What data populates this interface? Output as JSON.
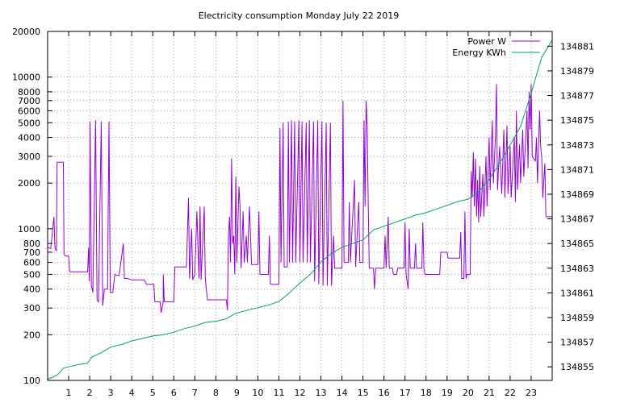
{
  "chart_data": {
    "type": "line",
    "title": "Electricity consumption Monday July 22 2019",
    "xlabel": "",
    "ylabel": "",
    "x_ticks": [
      "1",
      "2",
      "3",
      "4",
      "5",
      "6",
      "7",
      "8",
      "9",
      "10",
      "11",
      "12",
      "13",
      "14",
      "15",
      "16",
      "17",
      "18",
      "19",
      "20",
      "21",
      "22",
      "23"
    ],
    "xlim": [
      0,
      24
    ],
    "y_left_scale": "log",
    "ylim_left": [
      100,
      20000
    ],
    "y_left_ticks": [
      {
        "value": 100,
        "label": "100"
      },
      {
        "value": 200,
        "label": "200"
      },
      {
        "value": 300,
        "label": "300"
      },
      {
        "value": 400,
        "label": "400"
      },
      {
        "value": 500,
        "label": "500"
      },
      {
        "value": 600,
        "label": "600"
      },
      {
        "value": 700,
        "label": "700"
      },
      {
        "value": 800,
        "label": "800"
      },
      {
        "value": 1000,
        "label": "1000"
      },
      {
        "value": 2000,
        "label": "2000"
      },
      {
        "value": 3000,
        "label": "3000"
      },
      {
        "value": 4000,
        "label": "4000"
      },
      {
        "value": 5000,
        "label": "5000"
      },
      {
        "value": 6000,
        "label": "6000"
      },
      {
        "value": 7000,
        "label": "7000"
      },
      {
        "value": 8000,
        "label": "8000"
      },
      {
        "value": 10000,
        "label": "10000"
      },
      {
        "value": 20000,
        "label": "20000"
      }
    ],
    "ylim_right": [
      134853.9,
      134882.2
    ],
    "y_right_ticks": [
      {
        "value": 134855,
        "label": "134855"
      },
      {
        "value": 134857,
        "label": "134857"
      },
      {
        "value": 134859,
        "label": "134859"
      },
      {
        "value": 134861,
        "label": "134861"
      },
      {
        "value": 134863,
        "label": "134863"
      },
      {
        "value": 134865,
        "label": "134865"
      },
      {
        "value": 134867,
        "label": "134867"
      },
      {
        "value": 134869,
        "label": "134869"
      },
      {
        "value": 134871,
        "label": "134871"
      },
      {
        "value": 134873,
        "label": "134873"
      },
      {
        "value": 134875,
        "label": "134875"
      },
      {
        "value": 134877,
        "label": "134877"
      },
      {
        "value": 134879,
        "label": "134879"
      },
      {
        "value": 134881,
        "label": "134881"
      }
    ],
    "grid": true,
    "legend_position": "top-right",
    "series": [
      {
        "name": "Power W",
        "axis": "left",
        "color": "#9400d3",
        "points": [
          [
            0.0,
            750
          ],
          [
            0.15,
            740
          ],
          [
            0.3,
            1200
          ],
          [
            0.35,
            740
          ],
          [
            0.42,
            720
          ],
          [
            0.45,
            2750
          ],
          [
            0.75,
            2750
          ],
          [
            0.78,
            680
          ],
          [
            0.85,
            660
          ],
          [
            1.0,
            660
          ],
          [
            1.05,
            520
          ],
          [
            1.9,
            520
          ],
          [
            1.95,
            750
          ],
          [
            1.98,
            450
          ],
          [
            2.02,
            5100
          ],
          [
            2.08,
            420
          ],
          [
            2.15,
            380
          ],
          [
            2.28,
            5200
          ],
          [
            2.35,
            340
          ],
          [
            2.42,
            330
          ],
          [
            2.55,
            5100
          ],
          [
            2.62,
            310
          ],
          [
            2.7,
            400
          ],
          [
            2.85,
            400
          ],
          [
            2.92,
            5100
          ],
          [
            2.98,
            380
          ],
          [
            3.1,
            380
          ],
          [
            3.2,
            500
          ],
          [
            3.4,
            490
          ],
          [
            3.6,
            800
          ],
          [
            3.65,
            470
          ],
          [
            3.8,
            470
          ],
          [
            4.0,
            460
          ],
          [
            4.6,
            460
          ],
          [
            4.7,
            430
          ],
          [
            5.05,
            430
          ],
          [
            5.1,
            330
          ],
          [
            5.35,
            330
          ],
          [
            5.4,
            280
          ],
          [
            5.5,
            330
          ],
          [
            5.5,
            500
          ],
          [
            5.55,
            330
          ],
          [
            6.0,
            330
          ],
          [
            6.05,
            560
          ],
          [
            6.6,
            560
          ],
          [
            6.7,
            1600
          ],
          [
            6.75,
            470
          ],
          [
            6.85,
            1000
          ],
          [
            6.9,
            460
          ],
          [
            7.0,
            500
          ],
          [
            7.1,
            1300
          ],
          [
            7.2,
            470
          ],
          [
            7.25,
            1400
          ],
          [
            7.3,
            460
          ],
          [
            7.45,
            1400
          ],
          [
            7.5,
            470
          ],
          [
            7.6,
            340
          ],
          [
            8.5,
            340
          ],
          [
            8.55,
            290
          ],
          [
            8.6,
            900
          ],
          [
            8.65,
            1200
          ],
          [
            8.7,
            600
          ],
          [
            8.75,
            2900
          ],
          [
            8.8,
            800
          ],
          [
            8.85,
            900
          ],
          [
            8.9,
            500
          ],
          [
            8.95,
            2200
          ],
          [
            9.0,
            600
          ],
          [
            9.1,
            1900
          ],
          [
            9.15,
            1400
          ],
          [
            9.2,
            550
          ],
          [
            9.3,
            1300
          ],
          [
            9.35,
            600
          ],
          [
            9.45,
            900
          ],
          [
            9.5,
            600
          ],
          [
            9.6,
            1400
          ],
          [
            9.7,
            580
          ],
          [
            10.0,
            580
          ],
          [
            10.05,
            1300
          ],
          [
            10.1,
            500
          ],
          [
            10.5,
            500
          ],
          [
            10.55,
            900
          ],
          [
            10.6,
            430
          ],
          [
            11.0,
            430
          ],
          [
            11.05,
            4600
          ],
          [
            11.1,
            600
          ],
          [
            11.2,
            5000
          ],
          [
            11.25,
            560
          ],
          [
            11.4,
            560
          ],
          [
            11.45,
            5100
          ],
          [
            11.5,
            600
          ],
          [
            11.6,
            5200
          ],
          [
            11.65,
            600
          ],
          [
            11.75,
            5100
          ],
          [
            11.8,
            600
          ],
          [
            11.95,
            5200
          ],
          [
            12.0,
            600
          ],
          [
            12.1,
            5100
          ],
          [
            12.15,
            600
          ],
          [
            12.3,
            5000
          ],
          [
            12.35,
            600
          ],
          [
            12.45,
            5200
          ],
          [
            12.5,
            600
          ],
          [
            12.65,
            5100
          ],
          [
            12.7,
            450
          ],
          [
            12.85,
            5200
          ],
          [
            12.9,
            430
          ],
          [
            13.05,
            5100
          ],
          [
            13.1,
            420
          ],
          [
            13.25,
            5000
          ],
          [
            13.3,
            420
          ],
          [
            13.45,
            5000
          ],
          [
            13.5,
            420
          ],
          [
            13.6,
            900
          ],
          [
            13.65,
            550
          ],
          [
            14.0,
            550
          ],
          [
            14.05,
            7000
          ],
          [
            14.1,
            600
          ],
          [
            14.3,
            600
          ],
          [
            14.35,
            1500
          ],
          [
            14.4,
            600
          ],
          [
            14.6,
            2100
          ],
          [
            14.65,
            560
          ],
          [
            14.8,
            1500
          ],
          [
            14.85,
            600
          ],
          [
            15.0,
            600
          ],
          [
            15.05,
            5200
          ],
          [
            15.1,
            1400
          ],
          [
            15.15,
            7000
          ],
          [
            15.2,
            4800
          ],
          [
            15.25,
            1500
          ],
          [
            15.3,
            550
          ],
          [
            15.5,
            550
          ],
          [
            15.55,
            400
          ],
          [
            15.6,
            550
          ],
          [
            16.0,
            550
          ],
          [
            16.05,
            900
          ],
          [
            16.1,
            550
          ],
          [
            16.2,
            1200
          ],
          [
            16.25,
            550
          ],
          [
            16.4,
            550
          ],
          [
            16.45,
            500
          ],
          [
            16.6,
            500
          ],
          [
            16.65,
            550
          ],
          [
            16.95,
            550
          ],
          [
            17.0,
            1100
          ],
          [
            17.05,
            500
          ],
          [
            17.15,
            400
          ],
          [
            17.2,
            1000
          ],
          [
            17.25,
            550
          ],
          [
            17.45,
            550
          ],
          [
            17.5,
            800
          ],
          [
            17.55,
            550
          ],
          [
            17.8,
            550
          ],
          [
            17.85,
            1100
          ],
          [
            17.9,
            550
          ],
          [
            17.95,
            500
          ],
          [
            18.65,
            500
          ],
          [
            18.7,
            700
          ],
          [
            19.0,
            700
          ],
          [
            19.05,
            640
          ],
          [
            19.6,
            640
          ],
          [
            19.65,
            950
          ],
          [
            19.7,
            470
          ],
          [
            19.8,
            470
          ],
          [
            19.85,
            1300
          ],
          [
            19.9,
            470
          ],
          [
            19.95,
            500
          ],
          [
            20.1,
            500
          ],
          [
            20.15,
            2400
          ],
          [
            20.2,
            1600
          ],
          [
            20.25,
            3200
          ],
          [
            20.3,
            1400
          ],
          [
            20.35,
            2900
          ],
          [
            20.4,
            1200
          ],
          [
            20.45,
            2100
          ],
          [
            20.5,
            1100
          ],
          [
            20.55,
            2600
          ],
          [
            20.6,
            1200
          ],
          [
            20.7,
            2300
          ],
          [
            20.75,
            1200
          ],
          [
            20.85,
            3000
          ],
          [
            20.9,
            1400
          ],
          [
            21.0,
            4000
          ],
          [
            21.05,
            1800
          ],
          [
            21.15,
            5200
          ],
          [
            21.2,
            2000
          ],
          [
            21.3,
            4000
          ],
          [
            21.35,
            9000
          ],
          [
            21.4,
            1800
          ],
          [
            21.5,
            3500
          ],
          [
            21.6,
            1700
          ],
          [
            21.7,
            4500
          ],
          [
            21.75,
            1600
          ],
          [
            21.85,
            4800
          ],
          [
            21.9,
            1700
          ],
          [
            22.0,
            3500
          ],
          [
            22.05,
            1600
          ],
          [
            22.2,
            4000
          ],
          [
            22.25,
            1500
          ],
          [
            22.3,
            6000
          ],
          [
            22.35,
            1800
          ],
          [
            22.45,
            3600
          ],
          [
            22.5,
            2000
          ],
          [
            22.6,
            4500
          ],
          [
            22.65,
            2200
          ],
          [
            22.8,
            6000
          ],
          [
            22.85,
            2500
          ],
          [
            22.9,
            8000
          ],
          [
            22.95,
            4500
          ],
          [
            23.0,
            9000
          ],
          [
            23.05,
            3000
          ],
          [
            23.2,
            2800
          ],
          [
            23.25,
            4000
          ],
          [
            23.3,
            2000
          ],
          [
            23.4,
            6000
          ],
          [
            23.45,
            3500
          ],
          [
            23.5,
            3000
          ],
          [
            23.55,
            1600
          ],
          [
            23.65,
            2700
          ],
          [
            23.7,
            1200
          ],
          [
            24.0,
            1200
          ]
        ]
      },
      {
        "name": "Energy KWh",
        "axis": "right",
        "color": "#009e73",
        "points": [
          [
            0.0,
            134854.0
          ],
          [
            0.3,
            134854.2
          ],
          [
            0.5,
            134854.4
          ],
          [
            0.75,
            134854.9
          ],
          [
            1.0,
            134855.0
          ],
          [
            1.5,
            134855.2
          ],
          [
            1.9,
            134855.3
          ],
          [
            2.1,
            134855.8
          ],
          [
            2.5,
            134856.1
          ],
          [
            3.0,
            134856.6
          ],
          [
            3.5,
            134856.8
          ],
          [
            4.0,
            134857.1
          ],
          [
            4.5,
            134857.3
          ],
          [
            5.0,
            134857.5
          ],
          [
            5.5,
            134857.6
          ],
          [
            6.0,
            134857.8
          ],
          [
            6.5,
            134858.1
          ],
          [
            7.0,
            134858.3
          ],
          [
            7.5,
            134858.6
          ],
          [
            8.0,
            134858.7
          ],
          [
            8.5,
            134858.9
          ],
          [
            8.9,
            134859.3
          ],
          [
            9.3,
            134859.5
          ],
          [
            10.0,
            134859.8
          ],
          [
            10.5,
            134860.0
          ],
          [
            11.0,
            134860.3
          ],
          [
            11.5,
            134861.0
          ],
          [
            12.0,
            134861.8
          ],
          [
            12.5,
            134862.5
          ],
          [
            13.0,
            134863.5
          ],
          [
            13.5,
            134864.2
          ],
          [
            14.0,
            134864.7
          ],
          [
            14.5,
            134865.0
          ],
          [
            15.0,
            134865.3
          ],
          [
            15.5,
            134866.1
          ],
          [
            16.0,
            134866.4
          ],
          [
            16.5,
            134866.7
          ],
          [
            17.0,
            134867.0
          ],
          [
            17.5,
            134867.3
          ],
          [
            18.0,
            134867.5
          ],
          [
            18.5,
            134867.8
          ],
          [
            19.0,
            134868.1
          ],
          [
            19.5,
            134868.4
          ],
          [
            20.0,
            134868.6
          ],
          [
            20.5,
            134869.2
          ],
          [
            21.0,
            134870.2
          ],
          [
            21.5,
            134871.5
          ],
          [
            22.0,
            134873.0
          ],
          [
            22.5,
            134874.5
          ],
          [
            23.0,
            134877.2
          ],
          [
            23.5,
            134880.1
          ],
          [
            24.0,
            134881.5
          ]
        ]
      }
    ]
  }
}
